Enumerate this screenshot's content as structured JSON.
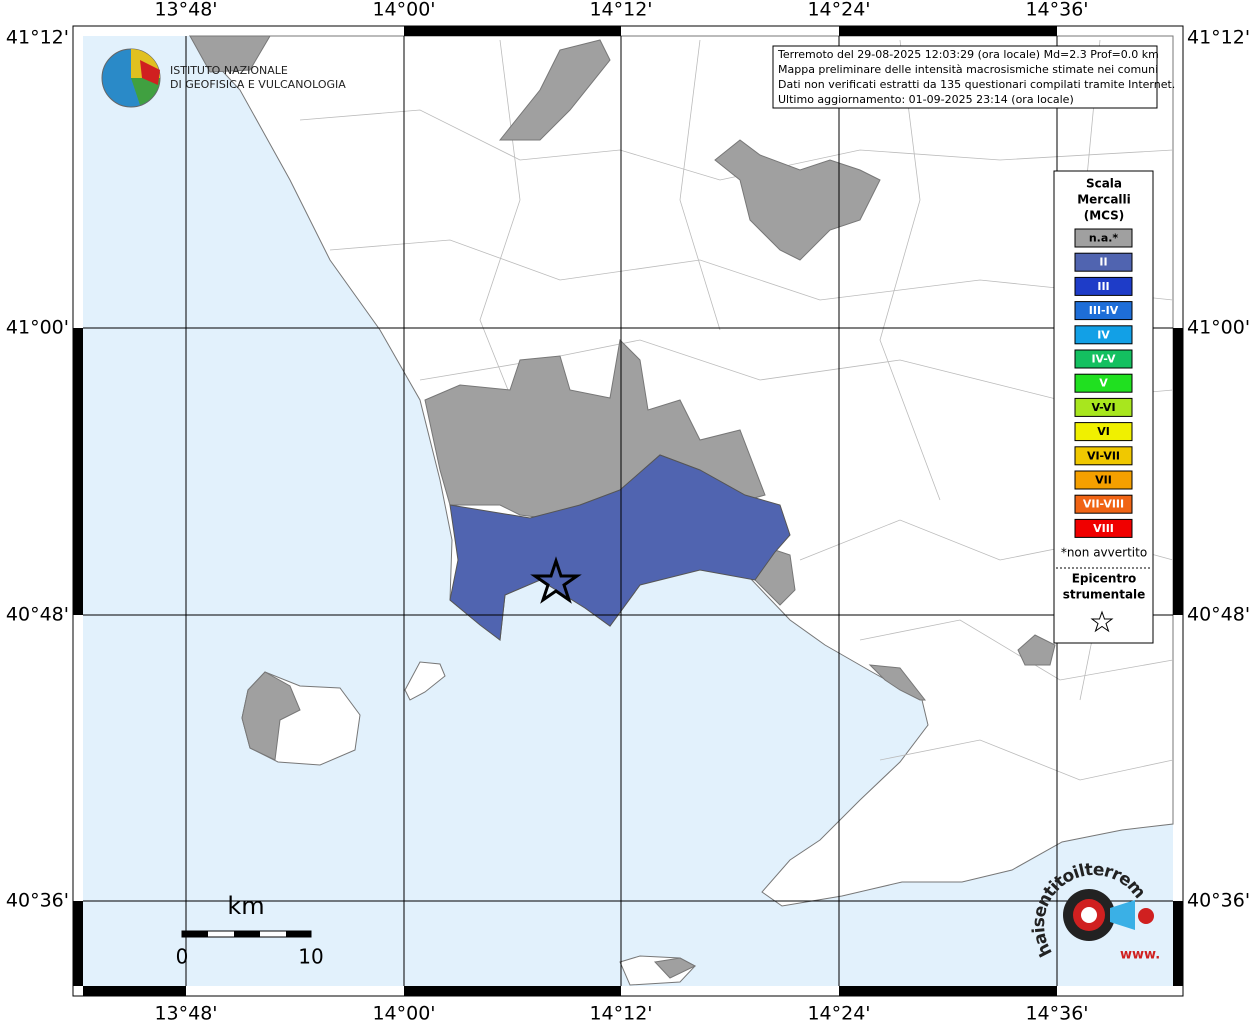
{
  "info_box": {
    "lines": [
      "Terremoto del 29-08-2025 12:03:29 (ora locale) Md=2.3 Prof=0.0 km",
      "Mappa preliminare delle intensità macrosismiche stimate nei comuni",
      "Dati non verificati estratti da 135 questionari compilati tramite Internet.",
      "Ultimo aggiornamento: 01-09-2025 23:14 (ora locale)"
    ]
  },
  "logo": {
    "lines": [
      "ISTITUTO NAZIONALE",
      "DI GEOFISICA E VULCANOLOGIA"
    ]
  },
  "axes": {
    "longitudes": [
      "13°48'",
      "14°00'",
      "14°12'",
      "14°24'",
      "14°36'"
    ],
    "latitudes": [
      "41°12'",
      "41°00'",
      "40°48'",
      "40°36'"
    ]
  },
  "legend": {
    "title_lines": [
      "Scala",
      "Mercalli",
      "(MCS)"
    ],
    "items": [
      {
        "label": "n.a.*",
        "color": "#a0a0a0"
      },
      {
        "label": "II",
        "color": "#5064b0"
      },
      {
        "label": "III",
        "color": "#1e3cc8"
      },
      {
        "label": "III-IV",
        "color": "#1e6ed8"
      },
      {
        "label": "IV",
        "color": "#12a0e6"
      },
      {
        "label": "IV-V",
        "color": "#14c060"
      },
      {
        "label": "V",
        "color": "#20e020"
      },
      {
        "label": "V-VI",
        "color": "#a8e61e"
      },
      {
        "label": "VI",
        "color": "#f0f000"
      },
      {
        "label": "VI-VII",
        "color": "#f0c800"
      },
      {
        "label": "VII",
        "color": "#f5a000"
      },
      {
        "label": "VII-VIII",
        "color": "#f06414"
      },
      {
        "label": "VIII",
        "color": "#f00000"
      }
    ],
    "note": "*non avvertito",
    "epicenter_lines": [
      "Epicentro",
      "strumentale"
    ]
  },
  "scale_bar": {
    "unit": "km",
    "labels": [
      "0",
      "10"
    ]
  },
  "hsit_logo": {
    "text": "haisentitoilterremoto.it",
    "sub": "www."
  }
}
